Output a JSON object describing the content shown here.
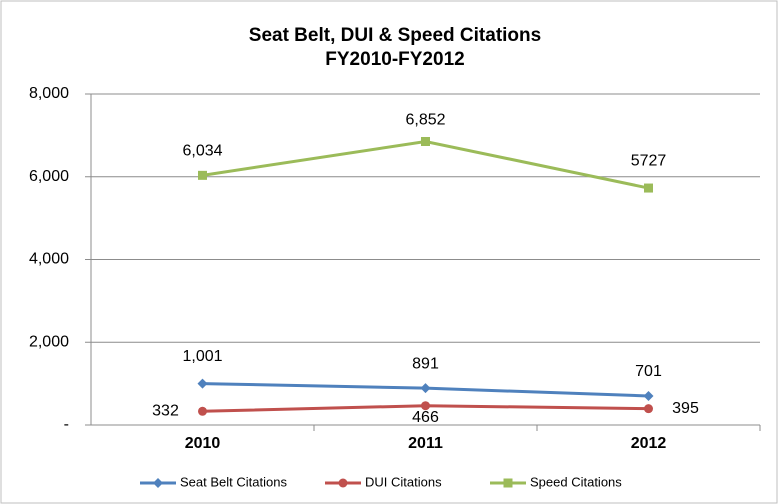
{
  "chart_data": {
    "type": "line",
    "title": "Seat Belt, DUI & Speed Citations",
    "subtitle": "FY2010-FY2012",
    "categories": [
      "2010",
      "2011",
      "2012"
    ],
    "series": [
      {
        "name": "Seat Belt Citations",
        "color": "#4f81bd",
        "marker": "diamond",
        "values": [
          1001,
          891,
          701
        ],
        "value_labels": [
          "1,001",
          "891",
          "701"
        ]
      },
      {
        "name": "DUI Citations",
        "color": "#c0504d",
        "marker": "circle",
        "values": [
          332,
          466,
          395
        ],
        "value_labels": [
          "332",
          "466",
          "395"
        ]
      },
      {
        "name": "Speed Citations",
        "color": "#9bbb59",
        "marker": "square",
        "values": [
          6034,
          6852,
          5727
        ],
        "value_labels": [
          "6,034",
          "6,852",
          "5727"
        ]
      }
    ],
    "ylim": [
      0,
      8000
    ],
    "yticks": [
      {
        "value": 0,
        "label": "-"
      },
      {
        "value": 2000,
        "label": "2,000"
      },
      {
        "value": 4000,
        "label": "4,000"
      },
      {
        "value": 6000,
        "label": "6,000"
      },
      {
        "value": 8000,
        "label": "8,000"
      }
    ],
    "grid": true,
    "legend": "bottom"
  }
}
